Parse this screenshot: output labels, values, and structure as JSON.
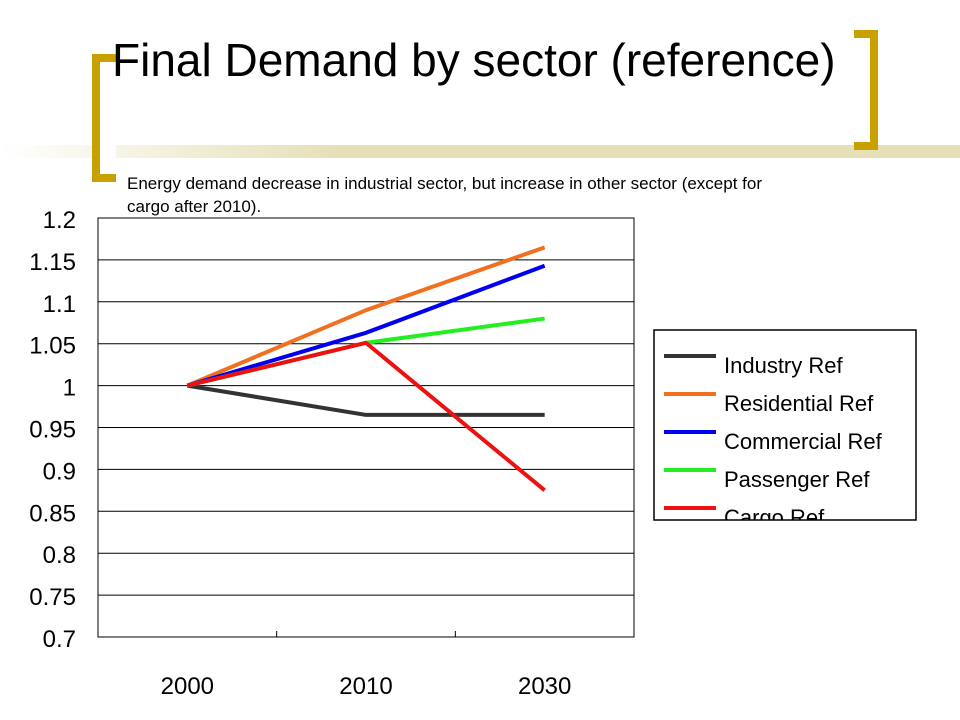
{
  "slide": {
    "title": "Final Demand by sector (reference)",
    "subtitle": "Energy demand decrease in industrial sector, but increase in other sector (except for cargo after 2010)."
  },
  "theme": {
    "accent": "#c8a000",
    "bar_color": "#e6e0b8"
  },
  "chart_data": {
    "type": "line",
    "title": "",
    "xlabel": "",
    "ylabel": "",
    "categories": [
      "2000",
      "2010",
      "2030"
    ],
    "ylim": [
      0.7,
      1.2
    ],
    "yticks": [
      "0.7",
      "0.75",
      "0.8",
      "0.85",
      "0.9",
      "0.95",
      "1",
      "1.05",
      "1.1",
      "1.15",
      "1.2"
    ],
    "grid": true,
    "legend": "right",
    "series": [
      {
        "name": "Industry Ref",
        "color": "#333333",
        "values": [
          1.0,
          0.965,
          0.965
        ]
      },
      {
        "name": "Residential Ref",
        "color": "#f07020",
        "values": [
          1.0,
          1.09,
          1.165
        ]
      },
      {
        "name": "Commercial Ref",
        "color": "#0000ee",
        "values": [
          1.0,
          1.063,
          1.143
        ]
      },
      {
        "name": "Passenger Ref",
        "color": "#22ee22",
        "values": [
          1.0,
          1.051,
          1.08
        ]
      },
      {
        "name": "Cargo Ref",
        "color": "#ee1111",
        "values": [
          1.0,
          1.051,
          0.875
        ]
      }
    ]
  }
}
